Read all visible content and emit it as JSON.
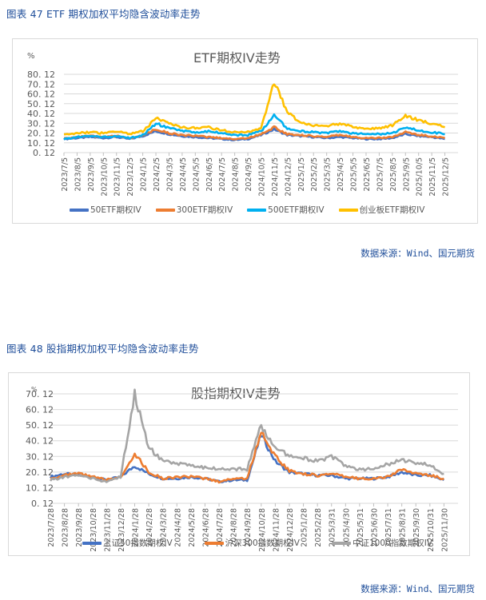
{
  "figures": [
    {
      "caption": "图表 47 ETF 期权加权平均隐含波动率走势",
      "source": "数据来源：Wind、国元期货",
      "chart_title": "ETF期权IV走势",
      "unit": "%",
      "legend": [
        {
          "label": "50ETF期权IV",
          "color": "#4472c4"
        },
        {
          "label": "300ETF期权IV",
          "color": "#ed7d31"
        },
        {
          "label": "500ETF期权IV",
          "color": "#00b0f0"
        },
        {
          "label": "创业板ETF期权IV",
          "color": "#ffc000"
        }
      ]
    },
    {
      "caption": "图表 48 股指期权加权平均隐含波动率走势",
      "source": "数据来源：Wind、国元期货",
      "chart_title": "股指期权IV走势",
      "unit": "%",
      "legend": [
        {
          "label": "上证50指数期权IV",
          "color": "#4472c4"
        },
        {
          "label": "沪深300指数期权IV",
          "color": "#ed7d31"
        },
        {
          "label": "中证1000指数期权IV",
          "color": "#a5a5a5"
        }
      ]
    }
  ],
  "chart_data": [
    {
      "type": "line",
      "title": "ETF期权IV走势",
      "xlabel": "",
      "ylabel": "%",
      "ylim": [
        0.12,
        80.12
      ],
      "yticks": [
        "0.12",
        "10.12",
        "20.12",
        "30.12",
        "40.12",
        "50.12",
        "60.12",
        "70.12",
        "80.12"
      ],
      "grid": true,
      "legend_position": "bottom",
      "categories": [
        "2023/7/5",
        "2023/8/5",
        "2023/9/5",
        "2023/10/5",
        "2023/11/5",
        "2023/12/5",
        "2024/1/5",
        "2024/2/5",
        "2024/3/5",
        "2024/4/5",
        "2024/5/5",
        "2024/6/5",
        "2024/7/5",
        "2024/8/5",
        "2024/9/5",
        "2024/10/5",
        "2024/11/5",
        "2024/12/5",
        "2025/1/5",
        "2025/2/5",
        "2025/3/5",
        "2025/4/5",
        "2025/5/5",
        "2025/6/5",
        "2025/7/5",
        "2025/8/5",
        "2025/9/5",
        "2025/10/5",
        "2025/11/5",
        "2025/12/5"
      ],
      "series": [
        {
          "name": "50ETF期权IV",
          "color": "#4472c4",
          "values": [
            14,
            15,
            16,
            15,
            16,
            14,
            17,
            22,
            19,
            17,
            16,
            15,
            14,
            13,
            14,
            18,
            24,
            18,
            17,
            16,
            15,
            16,
            15,
            14,
            14,
            15,
            19,
            17,
            16,
            14
          ]
        },
        {
          "name": "300ETF期权IV",
          "color": "#ed7d31",
          "values": [
            15,
            16,
            17,
            16,
            17,
            15,
            18,
            24,
            20,
            18,
            17,
            16,
            15,
            14,
            15,
            19,
            26,
            19,
            18,
            17,
            16,
            18,
            16,
            15,
            15,
            16,
            21,
            18,
            17,
            15
          ]
        },
        {
          "name": "500ETF期权IV",
          "color": "#00b0f0",
          "values": [
            14,
            16,
            17,
            16,
            17,
            15,
            18,
            30,
            25,
            22,
            21,
            22,
            20,
            18,
            18,
            22,
            38,
            25,
            22,
            21,
            20,
            22,
            20,
            19,
            19,
            20,
            26,
            23,
            21,
            19
          ]
        },
        {
          "name": "创业板ETF期权IV",
          "color": "#ffc000",
          "values": [
            18,
            20,
            21,
            20,
            22,
            19,
            22,
            35,
            30,
            26,
            25,
            26,
            23,
            21,
            21,
            25,
            72,
            42,
            30,
            28,
            27,
            30,
            27,
            24,
            25,
            28,
            38,
            33,
            30,
            26
          ]
        }
      ]
    },
    {
      "type": "line",
      "title": "股指期权IV走势",
      "xlabel": "",
      "ylabel": "%",
      "ylim": [
        0.12,
        70.12
      ],
      "yticks": [
        "0.12",
        "10.12",
        "20.12",
        "30.12",
        "40.12",
        "50.12",
        "60.12",
        "70.12"
      ],
      "grid": true,
      "legend_position": "bottom",
      "categories": [
        "2023/7/28",
        "2023/8/28",
        "2023/9/28",
        "2023/10/28",
        "2023/11/28",
        "2023/12/28",
        "2024/1/28",
        "2024/2/28",
        "2024/3/28",
        "2024/4/28",
        "2024/5/28",
        "2024/6/28",
        "2024/7/28",
        "2024/8/28",
        "2024/9/28",
        "2024/10/28",
        "2024/11/28",
        "2024/12/28",
        "2025/1/28",
        "2025/2/28",
        "2025/3/31",
        "2025/4/30",
        "2025/5/31",
        "2025/6/30",
        "2025/7/31",
        "2025/8/31",
        "2025/9/30",
        "2025/10/31",
        "2025/11/30"
      ],
      "series": [
        {
          "name": "上证50指数期权IV",
          "color": "#4472c4",
          "values": [
            17,
            19,
            18,
            17,
            15,
            17,
            24,
            19,
            16,
            16,
            17,
            16,
            14,
            15,
            15,
            44,
            27,
            20,
            19,
            18,
            18,
            16,
            16,
            16,
            17,
            20,
            18,
            18,
            15
          ]
        },
        {
          "name": "沪深300指数期权IV",
          "color": "#ed7d31",
          "values": [
            16,
            18,
            19,
            17,
            15,
            17,
            32,
            20,
            16,
            17,
            17,
            16,
            14,
            16,
            16,
            46,
            30,
            21,
            19,
            18,
            19,
            17,
            16,
            16,
            17,
            22,
            19,
            18,
            16
          ]
        },
        {
          "name": "中证1000指数期权IV",
          "color": "#a5a5a5",
          "values": [
            15,
            17,
            18,
            16,
            14,
            17,
            70,
            36,
            27,
            25,
            25,
            23,
            22,
            22,
            22,
            50,
            35,
            31,
            29,
            27,
            30,
            24,
            22,
            22,
            25,
            28,
            26,
            25,
            19
          ]
        }
      ]
    }
  ]
}
